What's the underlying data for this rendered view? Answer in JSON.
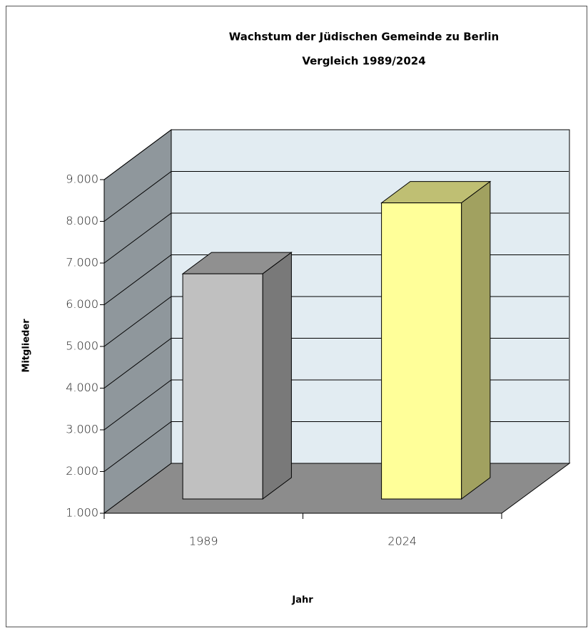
{
  "chart_data": {
    "type": "bar3d",
    "title": "Wachstum der Jüdischen Gemeinde zu Berlin",
    "subtitle": "Vergleich 1989/2024",
    "x_label": "Jahr",
    "y_label": "Mitglieder",
    "categories": [
      "1989",
      "2024"
    ],
    "values": [
      6400,
      8100
    ],
    "colors": [
      "#c0c0c0",
      "#ffff99"
    ],
    "ylim": [
      1000,
      9000
    ],
    "yticks": [
      {
        "value": 1000,
        "label": "1.000"
      },
      {
        "value": 2000,
        "label": "2.000"
      },
      {
        "value": 3000,
        "label": "3.000"
      },
      {
        "value": 4000,
        "label": "4.000"
      },
      {
        "value": 5000,
        "label": "5.000"
      },
      {
        "value": 6000,
        "label": "6.000"
      },
      {
        "value": 7000,
        "label": "7.000"
      },
      {
        "value": 8000,
        "label": "8.000"
      },
      {
        "value": 9000,
        "label": "9.000"
      }
    ],
    "grid": true
  }
}
